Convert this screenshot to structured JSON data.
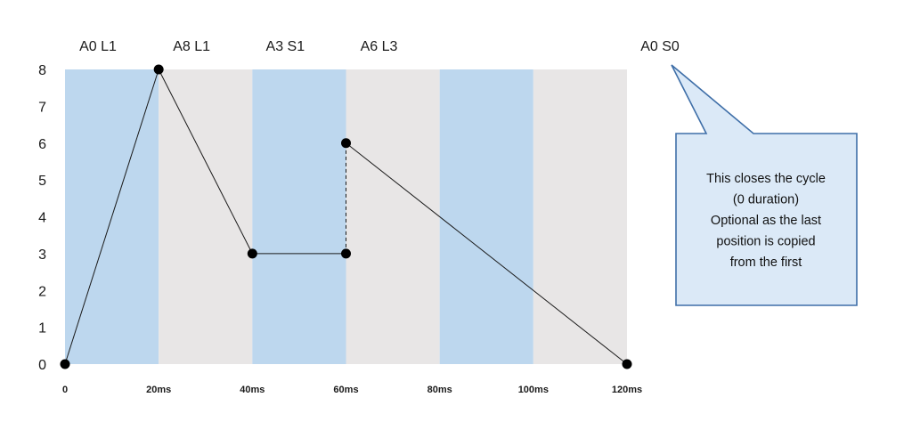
{
  "chart_data": {
    "type": "line",
    "x_tick_labels": [
      "0",
      "20ms",
      "40ms",
      "60ms",
      "80ms",
      "100ms",
      "120ms"
    ],
    "x_ticks": [
      0,
      20,
      40,
      60,
      80,
      100,
      120
    ],
    "xlim": [
      0,
      120
    ],
    "ylim": [
      0,
      8
    ],
    "y_ticks": [
      0,
      1,
      2,
      3,
      4,
      5,
      6,
      7,
      8
    ],
    "x_unit": "ms",
    "grid": false,
    "bands": [
      {
        "from": 0,
        "to": 20,
        "color": "#bdd7ee"
      },
      {
        "from": 20,
        "to": 40,
        "color": "#e8e6e6"
      },
      {
        "from": 40,
        "to": 60,
        "color": "#bdd7ee"
      },
      {
        "from": 60,
        "to": 80,
        "color": "#e8e6e6"
      },
      {
        "from": 80,
        "to": 100,
        "color": "#bdd7ee"
      },
      {
        "from": 100,
        "to": 120,
        "color": "#e8e6e6"
      }
    ],
    "points": [
      {
        "x": 0,
        "y": 0
      },
      {
        "x": 20,
        "y": 8
      },
      {
        "x": 40,
        "y": 3
      },
      {
        "x": 60,
        "y": 3
      },
      {
        "x": 60,
        "y": 6
      },
      {
        "x": 120,
        "y": 0
      }
    ],
    "segments": [
      {
        "from": 0,
        "to": 1,
        "style": "solid"
      },
      {
        "from": 1,
        "to": 2,
        "style": "solid"
      },
      {
        "from": 2,
        "to": 3,
        "style": "solid"
      },
      {
        "from": 3,
        "to": 4,
        "style": "dashed"
      },
      {
        "from": 4,
        "to": 5,
        "style": "solid"
      }
    ],
    "segment_labels": [
      {
        "text": "A0 L1",
        "x": 0
      },
      {
        "text": "A8 L1",
        "x": 20
      },
      {
        "text": "A3 S1",
        "x": 40
      },
      {
        "text": "A6 L3",
        "x": 60
      },
      {
        "text": "A0 S0",
        "x": 120
      }
    ],
    "annotation": {
      "lines": [
        "This closes the cycle",
        "(0 duration)",
        "Optional as the last",
        "position is copied",
        "from the first"
      ],
      "points_to": "A0 S0"
    },
    "colors": {
      "line": "#1a1a1a",
      "marker": "#000000",
      "callout_fill": "#dbe9f7",
      "callout_stroke": "#3f6fa8"
    }
  }
}
